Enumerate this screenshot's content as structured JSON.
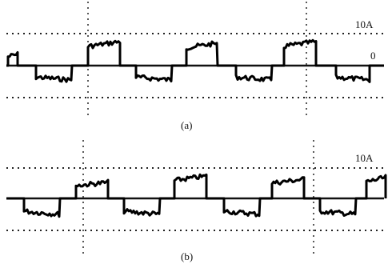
{
  "panel_a": {
    "scale_label": "10A",
    "zero_label": "0",
    "caption": "(a)"
  },
  "panel_b": {
    "scale_label": "10A",
    "caption": "(b)"
  }
}
